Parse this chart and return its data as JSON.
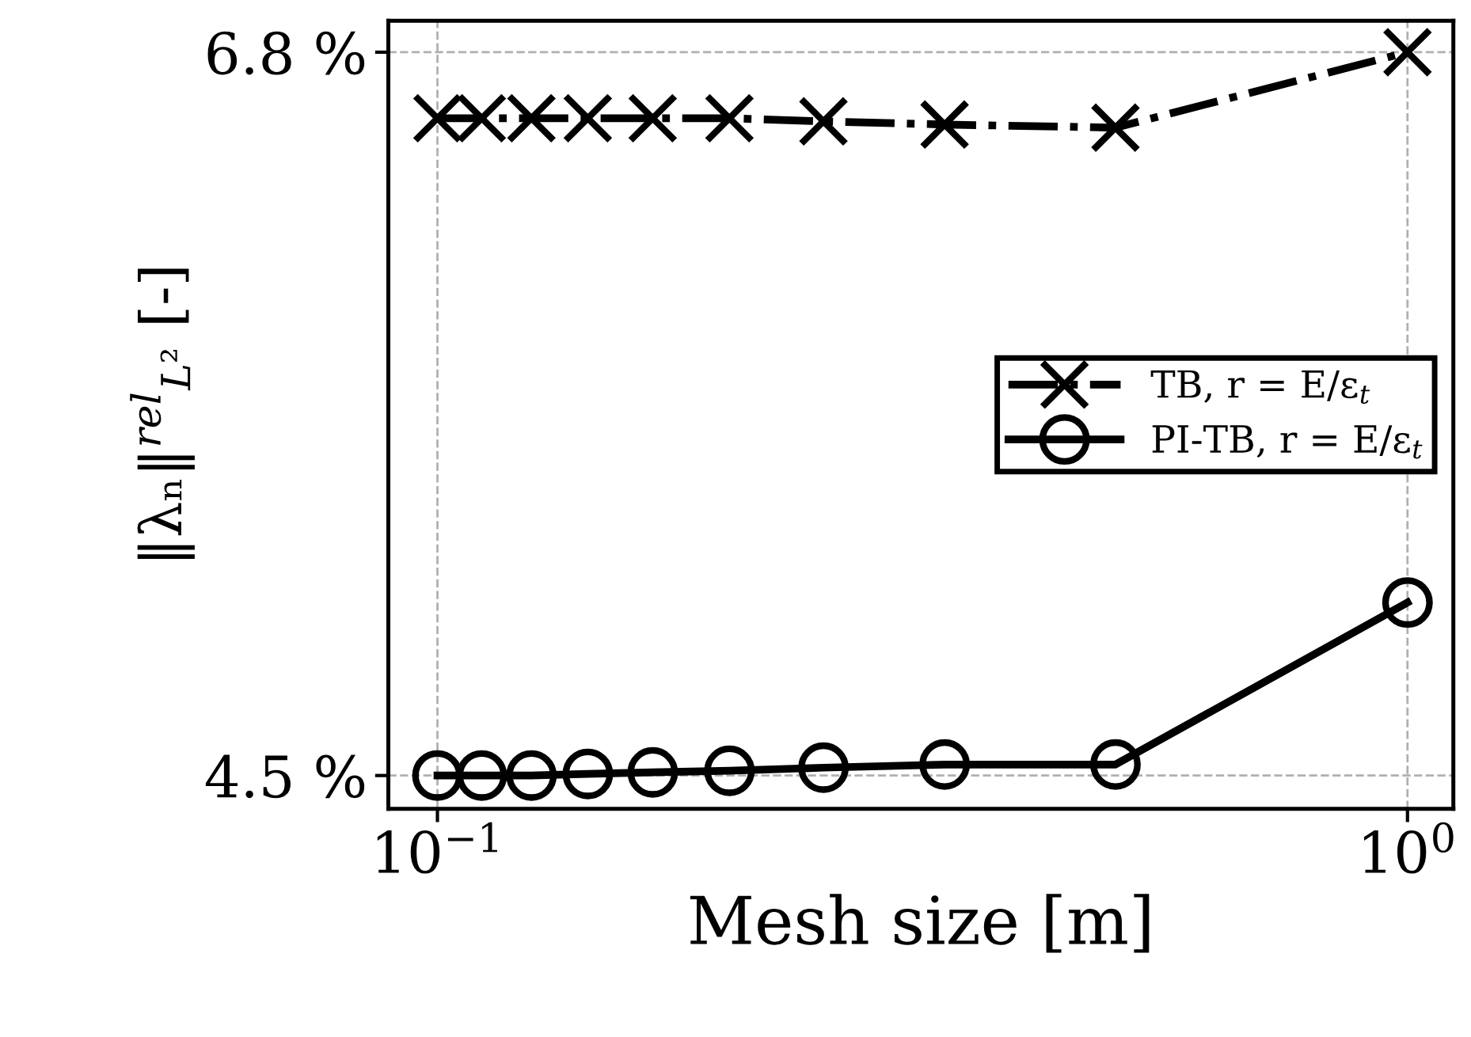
{
  "chart_data": {
    "type": "line",
    "xlabel": "Mesh size [m]",
    "ylabel": "‖λₙ‖$^{rel}$$_{L²}$ [-]",
    "x": [
      0.1,
      0.1111,
      0.125,
      0.1429,
      0.1667,
      0.2,
      0.25,
      0.3333,
      0.5,
      1.0
    ],
    "series": [
      {
        "name": "TB, r = E/ε$_{t}$",
        "color": "#000000",
        "marker": "cross",
        "line_style": "dashdot",
        "values": [
          6.59,
          6.59,
          6.59,
          6.59,
          6.59,
          6.59,
          6.58,
          6.57,
          6.56,
          6.8
        ]
      },
      {
        "name": "PI-TB, r = E/ε$_{t}$",
        "color": "#000000",
        "marker": "circle",
        "line_style": "solid",
        "values": [
          4.5,
          4.5,
          4.5,
          4.505,
          4.51,
          4.515,
          4.525,
          4.535,
          4.535,
          5.05
        ]
      }
    ],
    "log": "x",
    "xlim": [
      0.089,
      1.115
    ],
    "xticks": [
      {
        "value": 0.1,
        "label": "10$^{−1}$"
      },
      {
        "value": 1,
        "label": "10$^{0}$"
      }
    ],
    "ylim": [
      4.394,
      6.9
    ],
    "yticks": [
      {
        "value": 4.5,
        "label": "4.5 %"
      },
      {
        "value": 6.8,
        "label": "6.8 %"
      }
    ],
    "grid": true,
    "legend": "center right"
  }
}
